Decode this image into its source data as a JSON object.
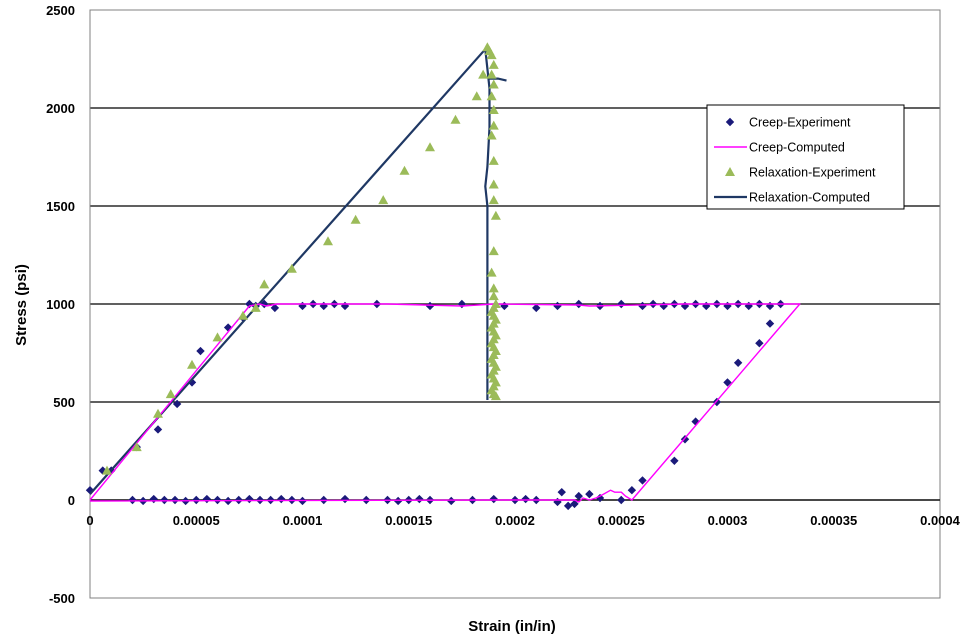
{
  "chart_data": {
    "type": "scatter",
    "title": "",
    "xlabel": "Strain (in/in)",
    "ylabel": "Stress (psi)",
    "xlim": [
      0,
      0.0004
    ],
    "ylim": [
      -500,
      2500
    ],
    "x_ticks": [
      0,
      5e-05,
      0.0001,
      0.00015,
      0.0002,
      0.00025,
      0.0003,
      0.00035,
      0.0004
    ],
    "x_tick_labels": [
      "0",
      "0.00005",
      "0.0001",
      "0.00015",
      "0.0002",
      "0.00025",
      "0.0003",
      "0.00035",
      "0.0004"
    ],
    "y_ticks": [
      -500,
      0,
      500,
      1000,
      1500,
      2000,
      2500
    ],
    "y_tick_labels": [
      "-500",
      "0",
      "500",
      "1000",
      "1500",
      "2000",
      "2500"
    ],
    "grid": "horizontal major gridlines",
    "legend_position": "right",
    "series": [
      {
        "name": "Creep-Experiment",
        "kind": "scatter",
        "marker": "diamond",
        "color": "#1a1a7a",
        "points": [
          [
            0.0,
            50
          ],
          [
            6e-06,
            150
          ],
          [
            1e-05,
            150
          ],
          [
            2.2e-05,
            270
          ],
          [
            3.2e-05,
            360
          ],
          [
            4.1e-05,
            490
          ],
          [
            4.8e-05,
            600
          ],
          [
            5.2e-05,
            760
          ],
          [
            6.5e-05,
            880
          ],
          [
            7.2e-05,
            930
          ],
          [
            7.5e-05,
            1000
          ],
          [
            7.8e-05,
            990
          ],
          [
            8.2e-05,
            1000
          ],
          [
            8.7e-05,
            980
          ],
          [
            0.0001,
            990
          ],
          [
            0.000105,
            1000
          ],
          [
            0.00011,
            990
          ],
          [
            0.000115,
            1000
          ],
          [
            0.00012,
            990
          ],
          [
            0.000135,
            1000
          ],
          [
            0.00016,
            990
          ],
          [
            0.000175,
            1000
          ],
          [
            0.000195,
            990
          ],
          [
            0.00021,
            980
          ],
          [
            0.00022,
            990
          ],
          [
            0.00023,
            1000
          ],
          [
            0.00024,
            990
          ],
          [
            0.00025,
            1000
          ],
          [
            0.00026,
            990
          ],
          [
            0.000265,
            1000
          ],
          [
            0.00027,
            990
          ],
          [
            0.000275,
            1000
          ],
          [
            0.00028,
            990
          ],
          [
            0.000285,
            1000
          ],
          [
            0.00029,
            990
          ],
          [
            0.000295,
            1000
          ],
          [
            0.0003,
            990
          ],
          [
            0.000305,
            1000
          ],
          [
            0.00031,
            990
          ],
          [
            0.000315,
            1000
          ],
          [
            0.00032,
            990
          ],
          [
            0.000325,
            1000
          ],
          [
            0.00032,
            900
          ],
          [
            0.000315,
            800
          ],
          [
            0.000305,
            700
          ],
          [
            0.0003,
            600
          ],
          [
            0.000295,
            500
          ],
          [
            0.000285,
            400
          ],
          [
            0.00028,
            310
          ],
          [
            0.000275,
            200
          ],
          [
            0.00026,
            100
          ],
          [
            0.000255,
            50
          ],
          [
            0.00025,
            0
          ],
          [
            0.00024,
            10
          ],
          [
            0.000235,
            30
          ],
          [
            0.00023,
            20
          ],
          [
            0.000228,
            -20
          ],
          [
            0.000225,
            -30
          ],
          [
            0.000222,
            40
          ],
          [
            0.00022,
            -10
          ],
          [
            0.00021,
            0
          ],
          [
            0.000205,
            5
          ],
          [
            0.0002,
            0
          ],
          [
            0.00019,
            5
          ],
          [
            0.00018,
            0
          ],
          [
            0.00017,
            -5
          ],
          [
            0.00016,
            0
          ],
          [
            0.000155,
            5
          ],
          [
            0.00015,
            0
          ],
          [
            0.000145,
            -5
          ],
          [
            0.00014,
            0
          ],
          [
            0.00013,
            0
          ],
          [
            0.00012,
            5
          ],
          [
            0.00011,
            0
          ],
          [
            0.0001,
            -5
          ],
          [
            9.5e-05,
            0
          ],
          [
            9e-05,
            5
          ],
          [
            8.5e-05,
            0
          ],
          [
            8e-05,
            0
          ],
          [
            7.5e-05,
            5
          ],
          [
            7e-05,
            0
          ],
          [
            6.5e-05,
            -5
          ],
          [
            6e-05,
            0
          ],
          [
            5.5e-05,
            5
          ],
          [
            5e-05,
            0
          ],
          [
            4.5e-05,
            -5
          ],
          [
            4e-05,
            0
          ],
          [
            3.5e-05,
            0
          ],
          [
            3e-05,
            5
          ],
          [
            2.5e-05,
            -5
          ],
          [
            2e-05,
            0
          ]
        ]
      },
      {
        "name": "Creep-Computed",
        "kind": "line",
        "color": "#ff00ff",
        "points": [
          [
            0.0,
            0
          ],
          [
            7.5e-05,
            990
          ],
          [
            8e-05,
            1000
          ],
          [
            8.3e-05,
            990
          ],
          [
            8.8e-05,
            1000
          ],
          [
            0.00014,
            1000
          ],
          [
            0.000175,
            990
          ],
          [
            0.00019,
            1000
          ],
          [
            0.00023,
            995
          ],
          [
            0.000235,
            990
          ],
          [
            0.00028,
            1000
          ],
          [
            0.000334,
            1000
          ],
          [
            0.000255,
            0
          ],
          [
            0.000252,
            20
          ],
          [
            0.00025,
            40
          ],
          [
            0.000247,
            40
          ],
          [
            0.000245,
            50
          ],
          [
            0.00024,
            20
          ],
          [
            0.000238,
            10
          ],
          [
            0.000235,
            0
          ],
          [
            0.000232,
            10
          ],
          [
            0.00023,
            -10
          ],
          [
            0.000228,
            0
          ],
          [
            0.00019,
            0
          ],
          [
            0.0,
            -5
          ]
        ]
      },
      {
        "name": "Relaxation-Experiment",
        "kind": "scatter",
        "marker": "triangle",
        "color": "#9bbb59",
        "points": [
          [
            8e-06,
            150
          ],
          [
            2.2e-05,
            270
          ],
          [
            3.2e-05,
            440
          ],
          [
            3.8e-05,
            540
          ],
          [
            4.8e-05,
            690
          ],
          [
            6e-05,
            830
          ],
          [
            7.2e-05,
            940
          ],
          [
            7.8e-05,
            980
          ],
          [
            8.2e-05,
            1100
          ],
          [
            9.5e-05,
            1180
          ],
          [
            0.000112,
            1320
          ],
          [
            0.000125,
            1430
          ],
          [
            0.000138,
            1530
          ],
          [
            0.000148,
            1680
          ],
          [
            0.00016,
            1800
          ],
          [
            0.000172,
            1940
          ],
          [
            0.000182,
            2060
          ],
          [
            0.000185,
            2170
          ],
          [
            0.000187,
            2310
          ],
          [
            0.000188,
            2290
          ],
          [
            0.000189,
            2270
          ],
          [
            0.00019,
            2220
          ],
          [
            0.000189,
            2170
          ],
          [
            0.00019,
            2120
          ],
          [
            0.000189,
            2060
          ],
          [
            0.00019,
            1990
          ],
          [
            0.00019,
            1910
          ],
          [
            0.000189,
            1860
          ],
          [
            0.00019,
            1730
          ],
          [
            0.00019,
            1610
          ],
          [
            0.00019,
            1530
          ],
          [
            0.000191,
            1450
          ],
          [
            0.00019,
            1270
          ],
          [
            0.000189,
            1160
          ],
          [
            0.00019,
            1080
          ],
          [
            0.00019,
            1040
          ],
          [
            0.000191,
            1000
          ],
          [
            0.00019,
            980
          ],
          [
            0.000189,
            960
          ],
          [
            0.00019,
            940
          ],
          [
            0.000191,
            920
          ],
          [
            0.00019,
            900
          ],
          [
            0.000189,
            880
          ],
          [
            0.00019,
            860
          ],
          [
            0.000191,
            840
          ],
          [
            0.00019,
            820
          ],
          [
            0.000189,
            800
          ],
          [
            0.00019,
            780
          ],
          [
            0.000191,
            760
          ],
          [
            0.00019,
            740
          ],
          [
            0.000189,
            720
          ],
          [
            0.00019,
            700
          ],
          [
            0.000191,
            680
          ],
          [
            0.00019,
            660
          ],
          [
            0.000189,
            640
          ],
          [
            0.00019,
            620
          ],
          [
            0.000191,
            600
          ],
          [
            0.00019,
            580
          ],
          [
            0.000189,
            560
          ],
          [
            0.00019,
            540
          ],
          [
            0.000191,
            530
          ]
        ]
      },
      {
        "name": "Relaxation-Computed",
        "kind": "line",
        "color": "#1f3864",
        "points": [
          [
            0.0,
            30
          ],
          [
            0.000186,
            2300
          ],
          [
            0.000188,
            2100
          ],
          [
            0.000188,
            1900
          ],
          [
            0.000187,
            1700
          ],
          [
            0.000186,
            1600
          ],
          [
            0.000187,
            1500
          ],
          [
            0.000187,
            1300
          ],
          [
            0.000187,
            1100
          ],
          [
            0.000187,
            900
          ],
          [
            0.000187,
            700
          ],
          [
            0.000187,
            510
          ]
        ],
        "extra_points": [
          [
            0.000188,
            2150
          ],
          [
            0.000192,
            2150
          ],
          [
            0.000196,
            2140
          ]
        ]
      }
    ]
  }
}
